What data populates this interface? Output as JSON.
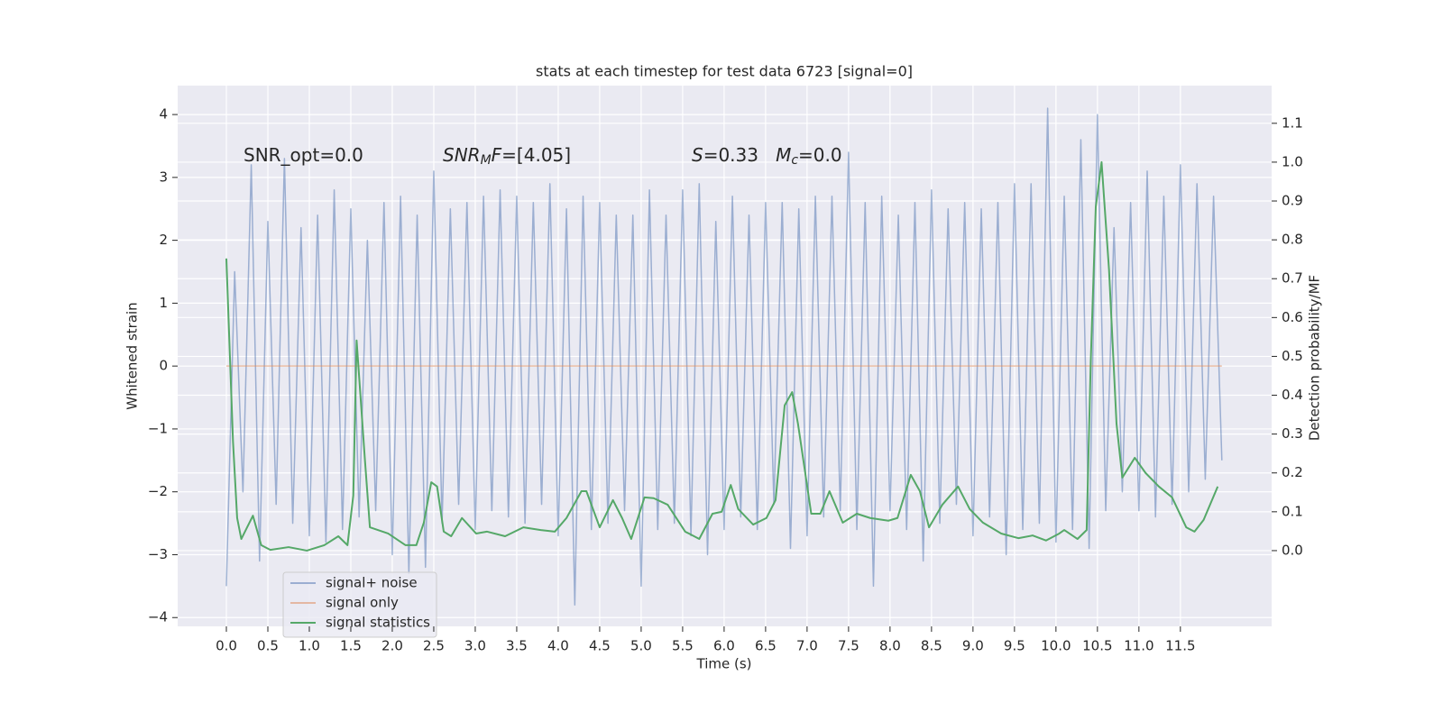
{
  "chart_data": {
    "type": "line",
    "title": "stats at each timestep for test data 6723 [signal=0]",
    "xlabel": "Time (s)",
    "ylabel": "Whitened strain",
    "y2label": "Detection probability/MF",
    "xlim": [
      -0.587,
      12.6
    ],
    "ylim": [
      -4.14,
      4.46
    ],
    "y2lim": [
      -0.195,
      1.197
    ],
    "xticks": [
      {
        "value": 0,
        "label": "0.0"
      },
      0.5,
      {
        "value": 1,
        "label": "1.0"
      },
      1.5,
      {
        "value": 2,
        "label": "2.0"
      },
      2.5,
      {
        "value": 3,
        "label": "3.0"
      },
      3.5,
      {
        "value": 4,
        "label": "4.0"
      },
      4.5,
      {
        "value": 5,
        "label": "5.0"
      },
      5.5,
      {
        "value": 6,
        "label": "6.0"
      },
      6.5,
      {
        "value": 7,
        "label": "7.0"
      },
      7.5,
      {
        "value": 8,
        "label": "8.0"
      },
      8.5,
      {
        "value": 9,
        "label": "9.0"
      },
      9.5,
      {
        "value": 10,
        "label": "10.0"
      },
      10.5,
      {
        "value": 11,
        "label": "11.0"
      },
      11.5
    ],
    "yticks": [
      {
        "value": -4,
        "label": "−4"
      },
      {
        "value": -3,
        "label": "−3"
      },
      {
        "value": -2,
        "label": "−2"
      },
      {
        "value": -1,
        "label": "−1"
      },
      0,
      1,
      2,
      3,
      4
    ],
    "y2ticks": [
      {
        "value": 0,
        "label": "0.0"
      },
      0.1,
      0.2,
      0.3,
      0.4,
      0.5,
      0.6,
      0.7,
      0.8,
      0.9,
      {
        "value": 1,
        "label": "1.0"
      },
      1.1
    ],
    "grid": true,
    "legend": "lower left",
    "annotations": [
      [
        {
          "text": "SNR_opt=0.0"
        }
      ],
      [
        {
          "text": "SNR",
          "italic": true
        },
        {
          "text": "M",
          "italic": true,
          "sub": true
        },
        {
          "text": "F",
          "italic": true
        },
        {
          "text": "=[4.05]"
        }
      ],
      [
        {
          "text": "S",
          "italic": true
        },
        {
          "text": "=0.33   "
        },
        {
          "text": "M",
          "italic": true
        },
        {
          "text": "c",
          "italic": true,
          "sub": true
        },
        {
          "text": "=0.0"
        }
      ]
    ],
    "series": [
      {
        "name": "signal+ noise",
        "color": "#4c72b0",
        "alpha": 0.5,
        "x": [
          0,
          0.1,
          0.2,
          0.3,
          0.4,
          0.5,
          0.6,
          0.7,
          0.8,
          0.9,
          1,
          1.1,
          1.2,
          1.3,
          1.4,
          1.5,
          1.6,
          1.7,
          1.8,
          1.9,
          2,
          2.1,
          2.2,
          2.3,
          2.4,
          2.5,
          2.6,
          2.7,
          2.8,
          2.9,
          3,
          3.1,
          3.2,
          3.3,
          3.4,
          3.5,
          3.6,
          3.7,
          3.8,
          3.9,
          4,
          4.1,
          4.2,
          4.3,
          4.4,
          4.5,
          4.6,
          4.7,
          4.8,
          4.9,
          5,
          5.1,
          5.2,
          5.3,
          5.4,
          5.5,
          5.6,
          5.7,
          5.8,
          5.9,
          6,
          6.1,
          6.2,
          6.3,
          6.4,
          6.5,
          6.6,
          6.7,
          6.8,
          6.9,
          7,
          7.1,
          7.2,
          7.3,
          7.4,
          7.5,
          7.6,
          7.7,
          7.8,
          7.9,
          8,
          8.1,
          8.2,
          8.3,
          8.4,
          8.5,
          8.6,
          8.7,
          8.8,
          8.9,
          9,
          9.1,
          9.2,
          9.3,
          9.4,
          9.5,
          9.6,
          9.7,
          9.8,
          9.9,
          10,
          10.1,
          10.2,
          10.3,
          10.4,
          10.5,
          10.6,
          10.7,
          10.8,
          10.9,
          11,
          11.1,
          11.2,
          11.3,
          11.4,
          11.5,
          11.6,
          11.7,
          11.8,
          11.9,
          12
        ],
        "values": [
          -3.5,
          1.5,
          -2.0,
          3.2,
          -3.1,
          2.3,
          -2.2,
          3.3,
          -2.5,
          2.2,
          -2.7,
          2.4,
          -2.8,
          2.8,
          -2.6,
          2.5,
          -2.4,
          2.0,
          -2.3,
          2.6,
          -3.0,
          2.7,
          -3.3,
          2.4,
          -3.2,
          3.1,
          -2.5,
          2.5,
          -2.2,
          2.6,
          -2.6,
          2.7,
          -2.3,
          2.8,
          -2.4,
          2.7,
          -2.5,
          2.6,
          -2.2,
          2.9,
          -2.7,
          2.5,
          -3.8,
          2.7,
          -2.6,
          2.6,
          -2.5,
          2.4,
          -2.3,
          2.4,
          -3.5,
          2.8,
          -2.6,
          2.4,
          -2.5,
          2.8,
          -2.7,
          2.9,
          -3.0,
          2.3,
          -2.6,
          2.7,
          -2.4,
          2.4,
          -2.6,
          2.6,
          -2.2,
          2.6,
          -2.9,
          2.5,
          -2.7,
          2.7,
          -2.4,
          2.7,
          -2.3,
          3.4,
          -2.6,
          2.6,
          -3.5,
          2.7,
          -2.3,
          2.4,
          -2.6,
          2.6,
          -3.1,
          2.8,
          -2.5,
          2.5,
          -2.2,
          2.6,
          -2.7,
          2.5,
          -2.4,
          2.6,
          -3.0,
          2.9,
          -2.6,
          2.9,
          -2.5,
          4.1,
          -2.8,
          2.7,
          -2.6,
          3.6,
          -2.9,
          4.0,
          -2.3,
          2.2,
          -2.0,
          2.6,
          -2.3,
          3.1,
          -2.4,
          2.7,
          -2.2,
          3.2,
          -2.0,
          2.9,
          -1.8,
          2.7,
          -1.5
        ]
      },
      {
        "name": "signal only",
        "color": "#dd8452",
        "alpha": 0.5,
        "x": [
          0,
          12
        ],
        "values": [
          0,
          0
        ]
      },
      {
        "name": "signal statistics",
        "color": "#55a868",
        "axis": "y2",
        "x": [
          0,
          0.08,
          0.13,
          0.18,
          0.32,
          0.42,
          0.53,
          0.75,
          0.97,
          1.18,
          1.35,
          1.46,
          1.53,
          1.57,
          1.67,
          1.73,
          1.95,
          2.16,
          2.29,
          2.38,
          2.47,
          2.54,
          2.62,
          2.71,
          2.84,
          3.01,
          3.14,
          3.36,
          3.58,
          3.79,
          3.96,
          4.1,
          4.28,
          4.34,
          4.5,
          4.66,
          4.77,
          4.88,
          5.04,
          5.15,
          5.32,
          5.53,
          5.7,
          5.86,
          5.97,
          6.08,
          6.17,
          6.35,
          6.51,
          6.62,
          6.73,
          6.82,
          6.89,
          6.97,
          7.05,
          7.16,
          7.27,
          7.43,
          7.6,
          7.76,
          7.98,
          8.09,
          8.25,
          8.36,
          8.47,
          8.63,
          8.82,
          8.96,
          9.12,
          9.34,
          9.55,
          9.72,
          9.88,
          10.04,
          10.1,
          10.26,
          10.37,
          10.42,
          10.48,
          10.55,
          10.64,
          10.73,
          10.8,
          10.95,
          11.08,
          11.24,
          11.4,
          11.57,
          11.67,
          11.78,
          11.95
        ],
        "values": [
          0.752,
          0.281,
          0.084,
          0.03,
          0.09,
          0.014,
          0.002,
          0.009,
          0,
          0.014,
          0.037,
          0.014,
          0.142,
          0.541,
          0.234,
          0.06,
          0.044,
          0.014,
          0.014,
          0.072,
          0.176,
          0.165,
          0.049,
          0.037,
          0.084,
          0.044,
          0.049,
          0.037,
          0.06,
          0.053,
          0.049,
          0.084,
          0.153,
          0.153,
          0.06,
          0.13,
          0.084,
          0.03,
          0.137,
          0.135,
          0.118,
          0.049,
          0.03,
          0.095,
          0.1,
          0.169,
          0.107,
          0.067,
          0.084,
          0.13,
          0.374,
          0.408,
          0.327,
          0.211,
          0.095,
          0.095,
          0.153,
          0.072,
          0.095,
          0.084,
          0.077,
          0.084,
          0.195,
          0.153,
          0.06,
          0.118,
          0.165,
          0.107,
          0.072,
          0.044,
          0.032,
          0.039,
          0.026,
          0.044,
          0.053,
          0.03,
          0.053,
          0.49,
          0.884,
          1,
          0.722,
          0.327,
          0.188,
          0.239,
          0.2,
          0.165,
          0.137,
          0.06,
          0.049,
          0.079,
          0.165
        ]
      }
    ]
  }
}
